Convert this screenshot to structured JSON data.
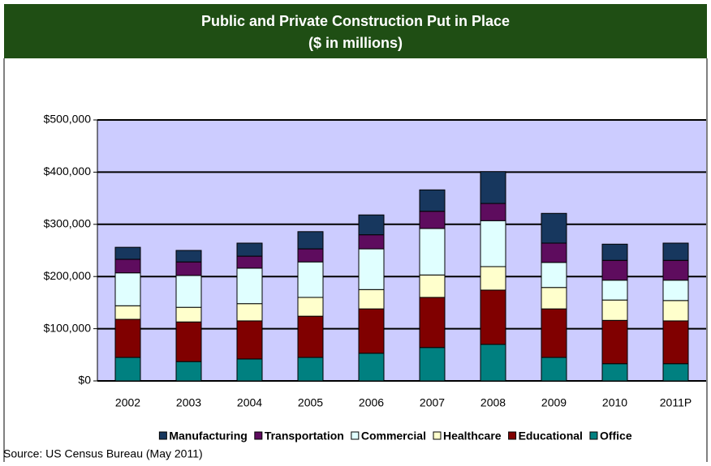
{
  "chart_data": {
    "type": "stacked_bar",
    "title": "Public and Private Construction Put in Place",
    "subtitle": "($ in millions)",
    "source": "Source: US Census Bureau (May 2011)",
    "categories": [
      "2002",
      "2003",
      "2004",
      "2005",
      "2006",
      "2007",
      "2008",
      "2009",
      "2010",
      "2011P"
    ],
    "series": [
      {
        "name": "Manufacturing",
        "color": "#17375e",
        "values": [
          23,
          22,
          25,
          33,
          38,
          41,
          61,
          57,
          31,
          33
        ]
      },
      {
        "name": "Transportation",
        "color": "#5e0c5e",
        "values": [
          26,
          26,
          23,
          25,
          27,
          33,
          33,
          37,
          38,
          38
        ]
      },
      {
        "name": "Commercial",
        "color": "#e0ffff",
        "values": [
          63,
          61,
          68,
          68,
          78,
          89,
          88,
          48,
          38,
          39
        ]
      },
      {
        "name": "Healthcare",
        "color": "#ffffcc",
        "values": [
          26,
          28,
          33,
          36,
          37,
          43,
          45,
          41,
          39,
          39
        ]
      },
      {
        "name": "Educational",
        "color": "#800000",
        "values": [
          73,
          76,
          73,
          79,
          85,
          96,
          104,
          93,
          83,
          82
        ]
      },
      {
        "name": "Office",
        "color": "#008080",
        "values": [
          45,
          37,
          42,
          45,
          53,
          64,
          70,
          45,
          33,
          33
        ]
      }
    ],
    "ylim": [
      0,
      500
    ],
    "yticks": [
      {
        "value": 0,
        "label": "$0"
      },
      {
        "value": 100,
        "label": "$100,000"
      },
      {
        "value": 200,
        "label": "$200,000"
      },
      {
        "value": 300,
        "label": "$300,000"
      },
      {
        "value": 400,
        "label": "$400,000"
      },
      {
        "value": 500,
        "label": "$500,000"
      }
    ],
    "grid": true
  }
}
